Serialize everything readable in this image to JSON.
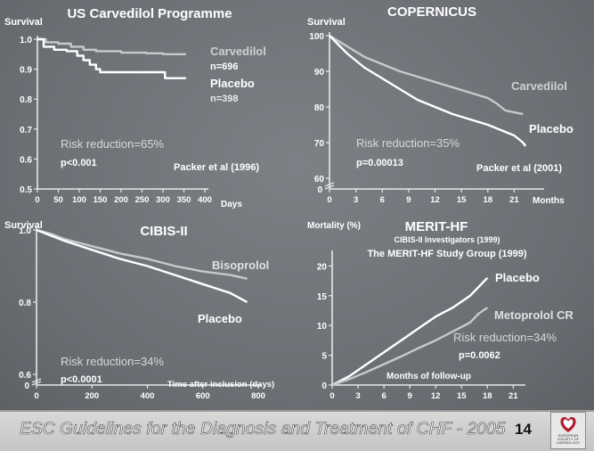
{
  "footer": {
    "title": "ESC Guidelines for the Diagnosis and Treatment of CHF - 2005",
    "page": "14"
  },
  "logo": {
    "text": "EUROPEAN SOCIETY OF CARDIOLOGY"
  },
  "chart_data": [
    {
      "id": "p1",
      "type": "line",
      "title": "US Carvedilol Programme",
      "ylabel": "Survival",
      "xlabel": "Days",
      "xlim": [
        0,
        400
      ],
      "ylim": [
        0.5,
        1.0
      ],
      "xticks": [
        0,
        50,
        100,
        150,
        200,
        250,
        300,
        350,
        400
      ],
      "xtick_labels": [
        "0",
        "50",
        "100",
        "150",
        "200",
        "250",
        "300",
        "350",
        "400"
      ],
      "yticks": [
        0.5,
        0.6,
        0.7,
        0.8,
        0.9,
        1.0
      ],
      "ytick_labels": [
        "0.5",
        "0.6",
        "0.7",
        "0.8",
        "0.9",
        "1.0"
      ],
      "series": [
        {
          "name": "Carvedilol",
          "sub": "n=696",
          "color": "#c9c9c9",
          "points": [
            [
              0,
              1.0
            ],
            [
              20,
              0.99
            ],
            [
              50,
              0.985
            ],
            [
              80,
              0.975
            ],
            [
              110,
              0.965
            ],
            [
              140,
              0.96
            ],
            [
              200,
              0.955
            ],
            [
              260,
              0.953
            ],
            [
              300,
              0.95
            ],
            [
              355,
              0.95
            ]
          ]
        },
        {
          "name": "Placebo",
          "sub": "n=398",
          "color": "#ffffff",
          "points": [
            [
              0,
              1.0
            ],
            [
              15,
              0.975
            ],
            [
              40,
              0.965
            ],
            [
              70,
              0.96
            ],
            [
              95,
              0.945
            ],
            [
              110,
              0.93
            ],
            [
              125,
              0.915
            ],
            [
              140,
              0.9
            ],
            [
              150,
              0.89
            ],
            [
              300,
              0.89
            ],
            [
              305,
              0.87
            ],
            [
              355,
              0.87
            ]
          ]
        }
      ],
      "annotations": [
        "Risk reduction=65%",
        "p<0.001",
        "Packer et al (1996)"
      ]
    },
    {
      "id": "p2",
      "type": "line",
      "title": "COPERNICUS",
      "ylabel": "Survival",
      "xlabel": "Months",
      "xlim": [
        0,
        24
      ],
      "ylim": [
        60,
        100
      ],
      "axis_break_zero": true,
      "xticks": [
        0,
        3,
        6,
        9,
        12,
        15,
        18,
        21
      ],
      "xtick_labels": [
        "0",
        "3",
        "6",
        "9",
        "12",
        "15",
        "18",
        "21"
      ],
      "yticks": [
        60,
        70,
        80,
        90,
        100
      ],
      "ytick_labels": [
        "60",
        "70",
        "80",
        "90",
        "100"
      ],
      "ybreak_label": "0",
      "series": [
        {
          "name": "Carvedilol",
          "color": "#c9c9c9",
          "points": [
            [
              0,
              100
            ],
            [
              2,
              97
            ],
            [
              4,
              94
            ],
            [
              6,
              92
            ],
            [
              8,
              90
            ],
            [
              10,
              88.5
            ],
            [
              12,
              87
            ],
            [
              14,
              85.5
            ],
            [
              16,
              84
            ],
            [
              18,
              82.5
            ],
            [
              19,
              81
            ],
            [
              20,
              79
            ],
            [
              22,
              78
            ]
          ]
        },
        {
          "name": "Placebo",
          "color": "#ffffff",
          "points": [
            [
              0,
              100
            ],
            [
              2,
              95
            ],
            [
              4,
              91
            ],
            [
              6,
              88
            ],
            [
              8,
              85
            ],
            [
              10,
              82
            ],
            [
              12,
              80
            ],
            [
              14,
              78
            ],
            [
              16,
              76.5
            ],
            [
              18,
              75
            ],
            [
              19,
              74
            ],
            [
              20,
              73
            ],
            [
              21,
              72
            ],
            [
              22,
              70
            ],
            [
              22.3,
              69
            ]
          ]
        }
      ],
      "annotations": [
        "Risk reduction=35%",
        "p=0.00013",
        "Packer et al (2001)"
      ]
    },
    {
      "id": "p3",
      "type": "line",
      "title": "CIBIS-II",
      "ylabel": "Survival",
      "xlabel": "Time after inclusion (days)",
      "xlim": [
        0,
        800
      ],
      "ylim": [
        0.6,
        1.0
      ],
      "axis_break_zero": true,
      "xticks": [
        0,
        200,
        400,
        600,
        800
      ],
      "xtick_labels": [
        "0",
        "200",
        "400",
        "600",
        "800"
      ],
      "yticks": [
        0.6,
        0.8,
        1.0
      ],
      "ytick_labels": [
        "0.6",
        "0.8",
        "1.0"
      ],
      "ybreak_label": "0",
      "series": [
        {
          "name": "Bisoprolol",
          "color": "#c9c9c9",
          "points": [
            [
              0,
              1.0
            ],
            [
              50,
              0.99
            ],
            [
              100,
              0.975
            ],
            [
              200,
              0.955
            ],
            [
              300,
              0.935
            ],
            [
              400,
              0.92
            ],
            [
              500,
              0.9
            ],
            [
              600,
              0.885
            ],
            [
              700,
              0.875
            ],
            [
              760,
              0.865
            ]
          ]
        },
        {
          "name": "Placebo",
          "color": "#ffffff",
          "points": [
            [
              0,
              1.0
            ],
            [
              50,
              0.985
            ],
            [
              100,
              0.97
            ],
            [
              200,
              0.945
            ],
            [
              300,
              0.92
            ],
            [
              400,
              0.9
            ],
            [
              500,
              0.875
            ],
            [
              600,
              0.85
            ],
            [
              700,
              0.825
            ],
            [
              760,
              0.8
            ]
          ]
        }
      ],
      "annotations": [
        "Risk reduction=34%",
        "p<0.0001"
      ]
    },
    {
      "id": "p4",
      "type": "line",
      "title": "MERIT-HF",
      "ylabel": "Mortality (%)",
      "xlabel": "Months of follow-up",
      "xlim": [
        0,
        22
      ],
      "ylim": [
        0,
        22
      ],
      "xticks": [
        0,
        3,
        6,
        9,
        12,
        15,
        18,
        21
      ],
      "xtick_labels": [
        "0",
        "3",
        "6",
        "9",
        "12",
        "15",
        "18",
        "21"
      ],
      "yticks": [
        0,
        5,
        10,
        15,
        20
      ],
      "ytick_labels": [
        "0",
        "5",
        "10",
        "15",
        "20"
      ],
      "series": [
        {
          "name": "Placebo",
          "color": "#ffffff",
          "points": [
            [
              0,
              0
            ],
            [
              2,
              1.5
            ],
            [
              4,
              3.5
            ],
            [
              6,
              5.5
            ],
            [
              8,
              7.5
            ],
            [
              10,
              9.5
            ],
            [
              12,
              11.5
            ],
            [
              14,
              13
            ],
            [
              16,
              15
            ],
            [
              17,
              16.5
            ],
            [
              18,
              18
            ]
          ]
        },
        {
          "name": "Metoprolol CR",
          "color": "#c9c9c9",
          "points": [
            [
              0,
              0
            ],
            [
              2,
              1
            ],
            [
              4,
              2.2
            ],
            [
              6,
              3.5
            ],
            [
              8,
              4.8
            ],
            [
              10,
              6.2
            ],
            [
              12,
              7.5
            ],
            [
              14,
              9
            ],
            [
              16,
              10.5
            ],
            [
              17,
              12
            ],
            [
              18,
              13
            ]
          ]
        }
      ],
      "annotations": [
        "CIBIS-II Investigators (1999)",
        "The MERIT-HF Study Group (1999)",
        "Risk reduction=34%",
        "p=0.0062"
      ]
    }
  ]
}
